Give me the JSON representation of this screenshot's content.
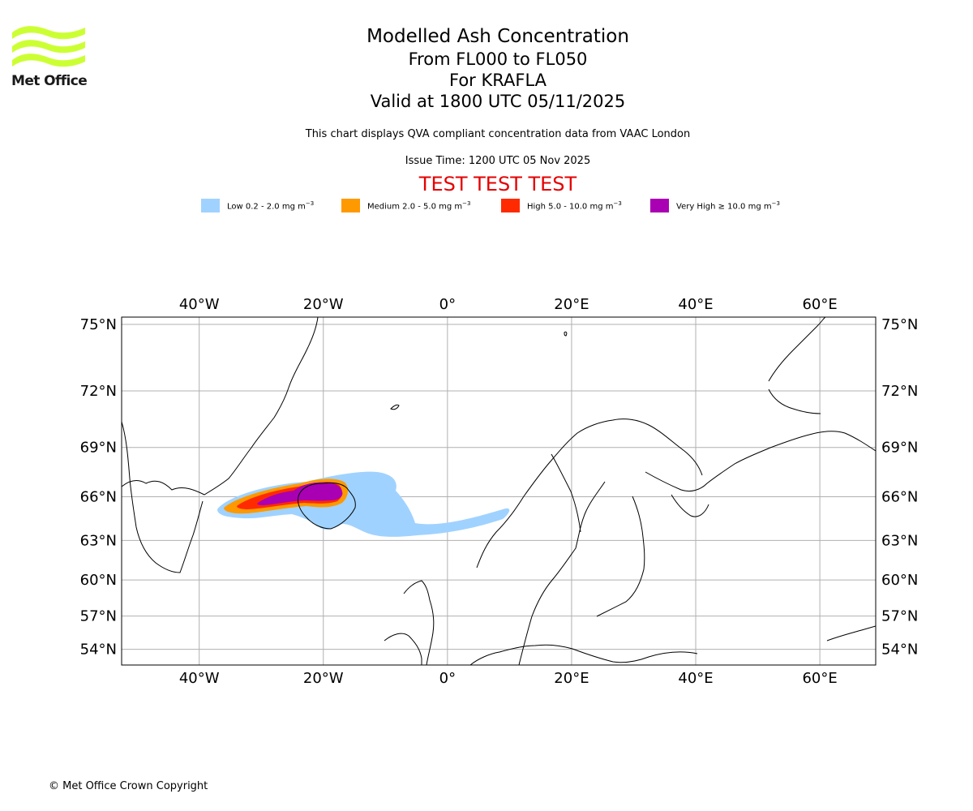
{
  "logo": {
    "text": "Met Office",
    "color": "#ccff33"
  },
  "header": {
    "title": "Modelled Ash Concentration",
    "levels": "From FL000 to FL050",
    "volcano": "For KRAFLA",
    "valid": "Valid at 1800 UTC 05/11/2025",
    "description": "This chart displays QVA compliant concentration data from VAAC London",
    "issue_time": "Issue Time: 1200 UTC 05 Nov 2025",
    "test_banner": "TEST TEST TEST"
  },
  "legend": [
    {
      "label": "Low 0.2 - 2.0 mg m",
      "sup": "−3",
      "color": "#a0d2ff"
    },
    {
      "label": "Medium 2.0 - 5.0 mg m",
      "sup": "−3",
      "color": "#ff9900"
    },
    {
      "label": "High 5.0 - 10.0 mg m",
      "sup": "−3",
      "color": "#ff2a00"
    },
    {
      "label": "Very High ≥ 10.0 mg m",
      "sup": "−3",
      "color": "#aa00b4"
    }
  ],
  "map": {
    "lon_range": [
      -52.5,
      69
    ],
    "lat_range": [
      52.5,
      75.3
    ],
    "lon_ticks": [
      {
        "value": -40,
        "label": "40°W"
      },
      {
        "value": -20,
        "label": "20°W"
      },
      {
        "value": 0,
        "label": "0°"
      },
      {
        "value": 20,
        "label": "20°E"
      },
      {
        "value": 40,
        "label": "40°E"
      },
      {
        "value": 60,
        "label": "60°E"
      }
    ],
    "lat_ticks": [
      {
        "value": 75,
        "label": "75°N"
      },
      {
        "value": 72,
        "label": "72°N"
      },
      {
        "value": 69,
        "label": "69°N"
      },
      {
        "value": 66,
        "label": "66°N"
      },
      {
        "value": 63,
        "label": "63°N"
      },
      {
        "value": 60,
        "label": "60°N"
      },
      {
        "value": 57,
        "label": "57°N"
      },
      {
        "value": 54,
        "label": "54°N"
      }
    ],
    "grid": true,
    "grid_color": "#b0b0b0",
    "coast_color": "#000000"
  },
  "footer": {
    "copyright": "© Met Office Crown Copyright"
  }
}
